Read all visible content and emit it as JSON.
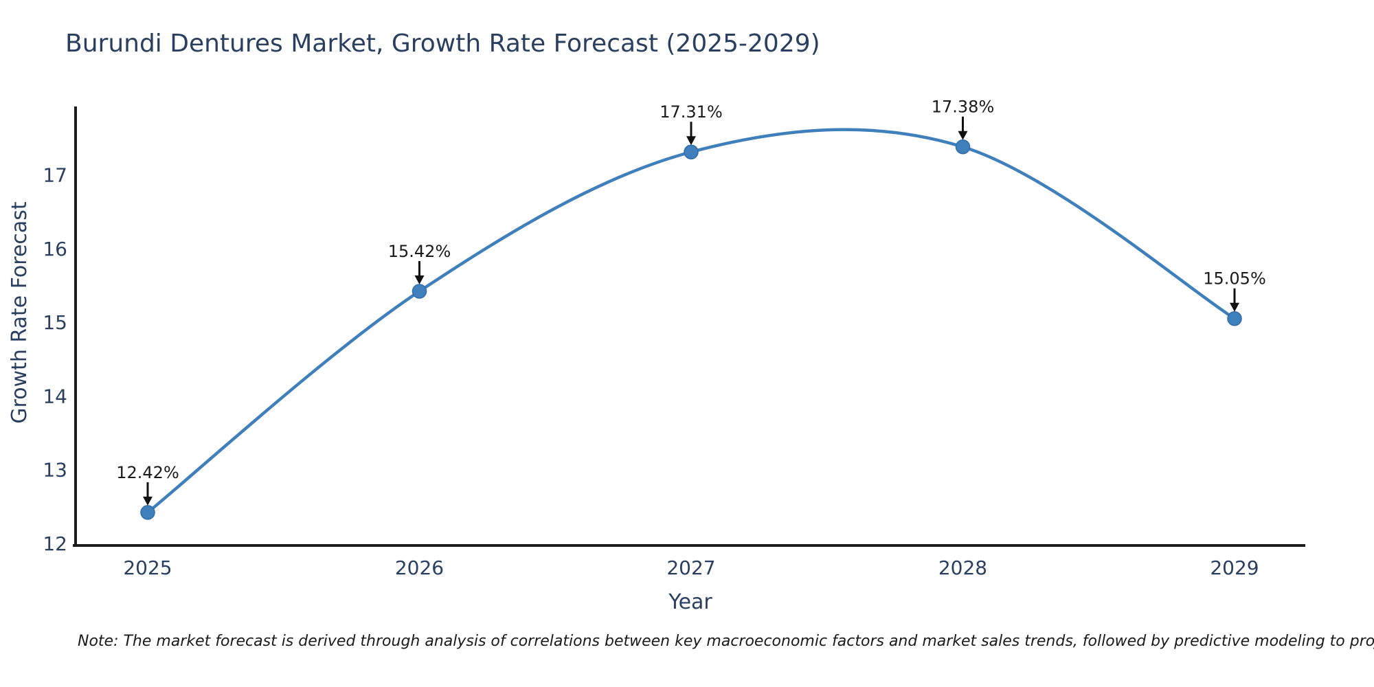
{
  "title": "Burundi Dentures Market, Growth Rate Forecast (2025-2029)",
  "footnote": "Note: The market forecast is derived through analysis of correlations between key macroeconomic factors and market sales trends, followed by predictive modeling to project future sales",
  "chart_data": {
    "type": "line",
    "line_shape": "spline",
    "title": "Burundi Dentures Market, Growth Rate Forecast (2025-2029)",
    "xlabel": "Year",
    "ylabel": "Growth Rate Forecast",
    "x": [
      "2025",
      "2026",
      "2027",
      "2028",
      "2029"
    ],
    "y": [
      12.42,
      15.42,
      17.31,
      17.38,
      15.05
    ],
    "point_labels": [
      "12.42%",
      "15.42%",
      "17.31%",
      "17.38%",
      "15.05%"
    ],
    "yticks": [
      12,
      13,
      14,
      15,
      16,
      17
    ],
    "ylim": [
      12,
      17.9
    ],
    "grid": false,
    "legend": "none",
    "colors": {
      "line": "#3f7fbc",
      "marker": "#3f7fbc",
      "marker_edge": "#2f6ca8",
      "axis_line": "#1c1c1c",
      "axis_text": "#2a3f5f",
      "annotation_text": "#1a1a1a",
      "arrow": "#111111",
      "background": "#ffffff"
    }
  }
}
